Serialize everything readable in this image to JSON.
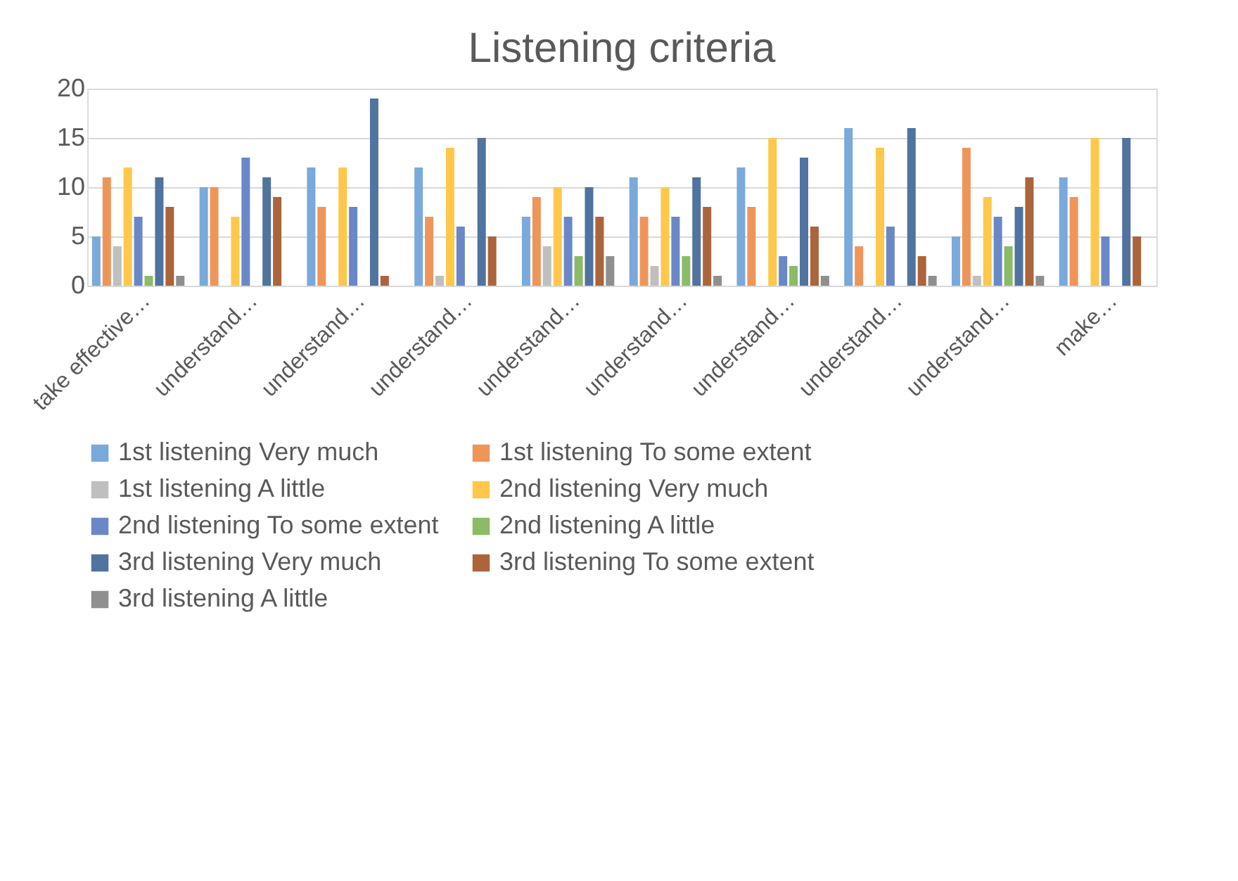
{
  "chart_data": {
    "type": "bar",
    "title": "Listening criteria",
    "categories": [
      "take effective…",
      "understand…",
      "understand…",
      "understand…",
      "understand…",
      "understand…",
      "understand…",
      "understand…",
      "understand…",
      "make…"
    ],
    "series": [
      {
        "name": "1st listening Very much",
        "color": "#7aa9db",
        "values": [
          5,
          10,
          12,
          12,
          7,
          11,
          12,
          16,
          5,
          11
        ]
      },
      {
        "name": "1st listening To some extent",
        "color": "#f0955a",
        "values": [
          11,
          10,
          8,
          7,
          9,
          7,
          8,
          4,
          14,
          9
        ]
      },
      {
        "name": "1st listening A little",
        "color": "#bfbfbf",
        "values": [
          4,
          null,
          null,
          1,
          4,
          2,
          null,
          null,
          1,
          null
        ]
      },
      {
        "name": "2nd listening Very much",
        "color": "#ffc84a",
        "values": [
          12,
          7,
          12,
          14,
          10,
          10,
          15,
          14,
          9,
          15
        ]
      },
      {
        "name": "2nd listening To some extent",
        "color": "#6a88c8",
        "values": [
          7,
          13,
          8,
          6,
          7,
          7,
          3,
          6,
          7,
          5
        ]
      },
      {
        "name": "2nd listening A little",
        "color": "#8bbb67",
        "values": [
          1,
          null,
          null,
          null,
          3,
          3,
          2,
          null,
          4,
          null
        ]
      },
      {
        "name": "3rd listening Very much",
        "color": "#50739f",
        "values": [
          11,
          11,
          19,
          15,
          10,
          11,
          13,
          16,
          8,
          15
        ]
      },
      {
        "name": "3rd listening To some extent",
        "color": "#ac643a",
        "values": [
          8,
          9,
          1,
          5,
          7,
          8,
          6,
          3,
          11,
          5
        ]
      },
      {
        "name": "3rd listening A little",
        "color": "#8f8f8f",
        "values": [
          1,
          null,
          null,
          null,
          3,
          1,
          1,
          1,
          1,
          null
        ]
      }
    ],
    "ylim": [
      0,
      20
    ],
    "yticks": [
      0,
      5,
      10,
      15,
      20
    ],
    "grid": "y",
    "legend": "bottom"
  }
}
